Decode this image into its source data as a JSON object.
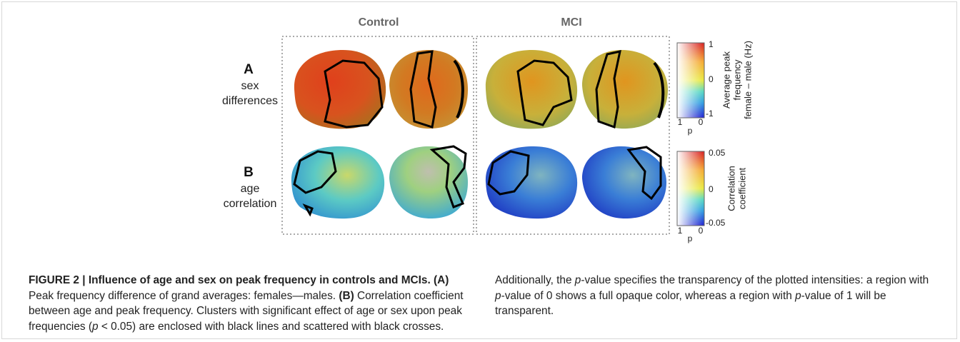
{
  "figure": {
    "columns": [
      "Control",
      "MCI"
    ],
    "rows": [
      {
        "letter": "A",
        "label": [
          "sex",
          "differences"
        ]
      },
      {
        "letter": "B",
        "label": [
          "age",
          "correlation"
        ]
      }
    ],
    "colorbars": [
      {
        "title": [
          "Average peak",
          "frequency",
          "female – male (Hz)"
        ],
        "ticks": [
          "1",
          "0",
          "-1"
        ],
        "p_label": "p",
        "p_ticks": [
          "1",
          "0"
        ]
      },
      {
        "title": [
          "Correlation",
          "coefficient"
        ],
        "ticks": [
          "0.05",
          "0",
          "-0.05"
        ],
        "p_label": "p",
        "p_ticks": [
          "1",
          "0"
        ]
      }
    ]
  },
  "caption": {
    "title": "FIGURE 2 | Influence of age and sex on peak frequency in controls and MCIs.",
    "panel_a": {
      "marker": "(A)",
      "text": "Peak frequency difference of grand averages: females—males."
    },
    "panel_b": {
      "marker": "(B)",
      "text": "Correlation coefficient between age and peak frequency."
    },
    "body": [
      "Clusters with significant effect of age or sex upon peak frequencies (",
      "p",
      " < 0.05) are enclosed with black lines and scattered with black crosses. Additionally, the ",
      "p",
      "-value specifies the transparency of the plotted intensities: a region with ",
      "p",
      "-value of 0 shows a full opaque color, whereas a region with ",
      "p",
      "-value of 1 will be transparent."
    ]
  }
}
